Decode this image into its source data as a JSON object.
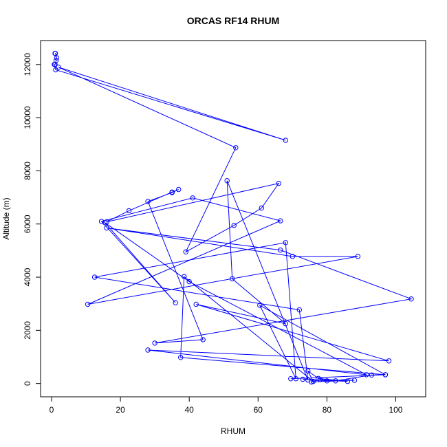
{
  "chart_data": {
    "type": "line",
    "title": "ORCAS RF14 RHUM",
    "xlabel": "RHUM",
    "ylabel": "Altitude (m)",
    "xlim": [
      -3.2,
      108.7
    ],
    "ylim": [
      -500,
      12900
    ],
    "xticks": [
      0,
      20,
      40,
      60,
      80,
      100
    ],
    "yticks": [
      0,
      2000,
      4000,
      6000,
      8000,
      10000,
      12000
    ],
    "grid": false,
    "legend": "none",
    "series": [
      {
        "color": "#0000ff",
        "marker": "open-circle",
        "points": [
          [
            1.0,
            12420
          ],
          [
            1.1,
            12420
          ],
          [
            1.5,
            12250
          ],
          [
            1.3,
            12150
          ],
          [
            1.0,
            12000
          ],
          [
            0.8,
            12000
          ],
          [
            1.2,
            11800
          ],
          [
            68.0,
            9150
          ],
          [
            2.0,
            11900
          ],
          [
            53.5,
            8870
          ],
          [
            39.0,
            4950
          ],
          [
            53.0,
            5950
          ],
          [
            61.0,
            6600
          ],
          [
            66.0,
            7530
          ],
          [
            16.0,
            6080
          ],
          [
            22.5,
            6500
          ],
          [
            35.0,
            7200
          ],
          [
            36.9,
            7300
          ],
          [
            35.0,
            7180
          ],
          [
            28.0,
            6850
          ],
          [
            44.0,
            1650
          ],
          [
            30.0,
            1520
          ],
          [
            104.5,
            3180
          ],
          [
            66.5,
            5020
          ],
          [
            16.0,
            5850
          ],
          [
            70.0,
            4780
          ],
          [
            89.0,
            4780
          ],
          [
            10.5,
            2980
          ],
          [
            66.5,
            6120
          ],
          [
            41.0,
            6980
          ],
          [
            14.5,
            6100
          ],
          [
            36.0,
            3040
          ],
          [
            15.5,
            6050
          ],
          [
            40.0,
            3830
          ],
          [
            91.5,
            330
          ],
          [
            28.0,
            1260
          ],
          [
            98.0,
            850
          ],
          [
            42.0,
            2980
          ],
          [
            68.0,
            2250
          ],
          [
            52.5,
            3940
          ],
          [
            51.0,
            7630
          ],
          [
            74.5,
            130
          ],
          [
            72.0,
            2770
          ],
          [
            12.5,
            4000
          ],
          [
            68.0,
            5300
          ],
          [
            71.0,
            180
          ],
          [
            60.5,
            2940
          ],
          [
            97.0,
            330
          ],
          [
            37.5,
            980
          ],
          [
            38.5,
            4020
          ],
          [
            76.0,
            80
          ],
          [
            74.5,
            470
          ],
          [
            77.5,
            190
          ],
          [
            86.0,
            80
          ],
          [
            73.0,
            160
          ],
          [
            80.0,
            100
          ],
          [
            88.0,
            120
          ],
          [
            75.5,
            60
          ],
          [
            78.0,
            150
          ],
          [
            82.5,
            100
          ],
          [
            93.0,
            320
          ],
          [
            97.0,
            330
          ],
          [
            69.5,
            180
          ]
        ]
      }
    ]
  }
}
